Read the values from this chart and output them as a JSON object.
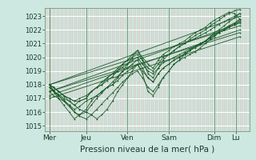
{
  "xlabel": "Pression niveau de la mer( hPa )",
  "bg_color": "#cce8e0",
  "plot_bg_color": "#cce8e0",
  "grid_color_v": "#e8b8b8",
  "grid_color_h": "#ffffff",
  "line_color": "#1a5c2a",
  "yticks": [
    1015,
    1016,
    1017,
    1018,
    1019,
    1020,
    1021,
    1022,
    1023
  ],
  "ylim": [
    1014.6,
    1023.6
  ],
  "xlim": [
    0.0,
    5.2
  ],
  "xtick_positions": [
    0.12,
    1.05,
    2.1,
    3.15,
    4.3,
    4.85
  ],
  "xtick_labels": [
    "Mer",
    "Jeu",
    "Ven",
    "Sam",
    "Dim",
    "Lu"
  ],
  "day_lines_x": [
    0.12,
    1.05,
    2.1,
    3.15,
    4.3,
    4.85
  ],
  "series": [
    {
      "x": [
        0.12,
        0.22,
        0.35,
        0.48,
        0.62,
        0.75,
        0.88,
        1.05,
        1.18,
        1.32,
        1.45,
        1.58,
        1.72,
        1.85,
        1.98,
        2.1,
        2.22,
        2.35,
        2.48,
        2.62,
        2.75,
        2.88,
        3.0,
        3.15,
        3.28,
        3.42,
        3.55,
        3.68,
        3.82,
        3.95,
        4.08,
        4.2,
        4.3,
        4.42,
        4.55,
        4.68,
        4.82,
        4.95
      ],
      "y": [
        1018.0,
        1017.6,
        1017.2,
        1016.8,
        1016.4,
        1016.0,
        1015.7,
        1015.5,
        1015.8,
        1016.2,
        1016.6,
        1017.0,
        1017.4,
        1017.8,
        1018.2,
        1018.5,
        1018.8,
        1019.0,
        1018.5,
        1017.8,
        1017.5,
        1018.0,
        1018.5,
        1019.0,
        1019.5,
        1019.8,
        1020.0,
        1020.2,
        1020.4,
        1020.7,
        1021.0,
        1021.3,
        1021.5,
        1021.8,
        1022.0,
        1022.3,
        1022.5,
        1022.7
      ]
    },
    {
      "x": [
        0.12,
        0.22,
        0.35,
        0.48,
        0.62,
        0.75,
        0.88,
        1.05,
        1.18,
        1.32,
        1.45,
        1.58,
        1.72,
        1.85,
        1.98,
        2.1,
        2.22,
        2.35,
        2.48,
        2.62,
        2.75,
        2.88,
        3.0,
        3.15,
        3.28,
        3.42,
        3.55,
        3.68,
        3.82,
        3.95,
        4.08,
        4.2,
        4.3,
        4.42,
        4.55,
        4.68,
        4.82,
        4.95
      ],
      "y": [
        1017.8,
        1017.5,
        1017.2,
        1016.9,
        1016.5,
        1016.2,
        1016.4,
        1016.8,
        1017.0,
        1017.2,
        1017.5,
        1017.8,
        1018.0,
        1018.3,
        1018.7,
        1019.0,
        1019.2,
        1019.5,
        1019.0,
        1018.5,
        1018.2,
        1018.8,
        1019.2,
        1019.5,
        1019.8,
        1020.0,
        1020.2,
        1020.5,
        1020.7,
        1020.9,
        1021.2,
        1021.5,
        1021.7,
        1021.9,
        1022.1,
        1022.3,
        1022.5,
        1022.8
      ]
    },
    {
      "x": [
        0.12,
        0.22,
        0.35,
        0.48,
        0.62,
        0.75,
        0.88,
        1.05,
        1.18,
        1.32,
        1.45,
        1.58,
        1.72,
        1.85,
        1.98,
        2.1,
        2.22,
        2.35,
        2.48,
        2.62,
        2.75,
        2.88,
        3.0,
        3.15,
        3.28,
        3.42,
        3.55,
        3.68,
        3.82,
        3.95,
        4.08,
        4.2,
        4.3,
        4.42,
        4.55,
        4.68,
        4.82,
        4.95
      ],
      "y": [
        1017.5,
        1017.2,
        1017.0,
        1016.8,
        1016.5,
        1016.0,
        1015.8,
        1016.0,
        1016.5,
        1017.0,
        1017.4,
        1017.8,
        1018.2,
        1018.6,
        1019.0,
        1019.2,
        1019.5,
        1019.8,
        1019.2,
        1018.5,
        1018.2,
        1018.8,
        1019.2,
        1019.5,
        1019.8,
        1020.0,
        1020.3,
        1020.5,
        1020.8,
        1021.0,
        1021.2,
        1021.4,
        1021.6,
        1021.8,
        1022.0,
        1022.2,
        1022.4,
        1022.6
      ]
    },
    {
      "x": [
        0.12,
        0.22,
        0.35,
        0.48,
        0.62,
        0.75,
        0.88,
        1.05,
        1.18,
        1.32,
        1.45,
        1.58,
        1.72,
        1.85,
        1.98,
        2.1,
        2.22,
        2.35,
        2.48,
        2.62,
        2.75,
        2.88,
        3.0,
        3.15,
        3.28,
        3.42,
        3.55,
        3.68,
        3.82,
        3.95,
        4.08,
        4.2,
        4.3,
        4.42,
        4.55,
        4.68,
        4.82,
        4.95
      ],
      "y": [
        1017.8,
        1017.5,
        1017.3,
        1017.0,
        1016.8,
        1016.5,
        1016.8,
        1017.0,
        1017.5,
        1017.8,
        1018.0,
        1018.3,
        1018.6,
        1019.0,
        1019.3,
        1019.5,
        1019.8,
        1020.0,
        1019.5,
        1019.0,
        1018.8,
        1019.2,
        1019.6,
        1019.8,
        1020.0,
        1020.2,
        1020.4,
        1020.6,
        1020.8,
        1021.0,
        1021.2,
        1021.4,
        1021.6,
        1021.8,
        1022.0,
        1022.2,
        1022.4,
        1022.6
      ]
    },
    {
      "x": [
        0.12,
        0.22,
        0.35,
        0.48,
        0.62,
        0.75,
        0.88,
        1.05,
        1.18,
        1.32,
        1.45,
        1.58,
        1.72,
        1.85,
        1.98,
        2.1,
        2.22,
        2.35,
        2.48,
        2.62,
        2.75,
        2.88,
        3.0,
        3.15,
        3.28,
        3.42,
        3.55,
        3.68,
        3.82,
        3.95,
        4.08,
        4.2,
        4.3,
        4.42,
        4.55,
        4.68,
        4.82,
        4.95
      ],
      "y": [
        1018.0,
        1017.8,
        1017.5,
        1017.2,
        1016.8,
        1016.5,
        1016.2,
        1016.0,
        1015.8,
        1015.5,
        1015.8,
        1016.2,
        1016.8,
        1017.5,
        1018.0,
        1018.5,
        1019.0,
        1019.5,
        1018.8,
        1017.5,
        1017.2,
        1017.8,
        1018.5,
        1019.0,
        1019.5,
        1019.8,
        1020.2,
        1020.5,
        1020.8,
        1021.0,
        1021.2,
        1021.5,
        1021.8,
        1022.0,
        1022.3,
        1022.6,
        1022.9,
        1023.2
      ]
    },
    {
      "x": [
        0.12,
        0.22,
        0.35,
        0.48,
        0.62,
        0.75,
        0.88,
        1.05,
        1.18,
        1.32,
        1.45,
        1.58,
        1.72,
        1.85,
        1.98,
        2.1,
        2.22,
        2.35,
        2.48,
        2.62,
        2.75,
        2.88,
        3.0,
        3.15,
        3.28,
        3.42,
        3.55,
        3.68,
        3.82,
        3.95,
        4.08,
        4.2,
        4.3,
        4.42,
        4.55,
        4.68,
        4.82,
        4.95
      ],
      "y": [
        1018.0,
        1017.8,
        1017.5,
        1017.2,
        1017.0,
        1016.8,
        1017.0,
        1017.2,
        1017.5,
        1017.8,
        1018.0,
        1018.5,
        1018.8,
        1019.2,
        1019.5,
        1019.8,
        1020.0,
        1020.2,
        1019.8,
        1019.2,
        1019.0,
        1019.5,
        1020.0,
        1020.2,
        1020.5,
        1020.8,
        1021.0,
        1021.2,
        1021.4,
        1021.6,
        1021.8,
        1022.0,
        1022.2,
        1022.4,
        1022.6,
        1022.8,
        1023.0,
        1023.2
      ]
    },
    {
      "x": [
        0.12,
        0.22,
        0.35,
        0.48,
        0.62,
        0.75,
        0.88,
        1.05,
        1.18,
        1.32,
        1.45,
        1.58,
        1.72,
        1.85,
        1.98,
        2.1,
        2.22,
        2.35,
        2.48,
        2.62,
        2.75,
        2.88,
        3.0,
        3.15,
        3.28,
        3.42,
        3.55,
        3.68,
        3.82,
        3.95,
        4.08,
        4.2,
        4.3,
        4.42,
        4.55,
        4.68,
        4.82,
        4.95
      ],
      "y": [
        1018.0,
        1017.5,
        1017.0,
        1016.5,
        1016.0,
        1015.5,
        1015.8,
        1016.2,
        1016.8,
        1017.2,
        1017.5,
        1017.8,
        1018.0,
        1018.5,
        1019.0,
        1019.5,
        1020.0,
        1020.5,
        1019.8,
        1018.8,
        1018.5,
        1019.2,
        1019.8,
        1020.2,
        1020.5,
        1020.8,
        1021.0,
        1021.3,
        1021.6,
        1021.8,
        1022.0,
        1022.3,
        1022.5,
        1022.7,
        1023.0,
        1023.2,
        1023.4,
        1023.5
      ]
    },
    {
      "x": [
        0.12,
        0.22,
        0.35,
        0.48,
        0.62,
        0.75,
        0.88,
        1.05,
        1.18,
        1.32,
        1.45,
        1.58,
        1.72,
        1.85,
        1.98,
        2.1,
        2.22,
        2.35,
        2.48,
        2.62,
        2.75,
        2.88,
        3.0,
        3.15,
        3.28,
        3.42,
        3.55,
        3.68,
        3.82,
        3.95,
        4.08,
        4.2,
        4.3,
        4.42,
        4.55,
        4.68,
        4.82,
        4.95
      ],
      "y": [
        1018.0,
        1017.8,
        1017.5,
        1017.2,
        1017.0,
        1016.8,
        1016.8,
        1017.0,
        1017.5,
        1017.8,
        1018.2,
        1018.5,
        1018.8,
        1019.0,
        1019.5,
        1019.8,
        1020.2,
        1020.5,
        1020.0,
        1019.5,
        1019.2,
        1019.8,
        1020.2,
        1020.5,
        1020.8,
        1021.0,
        1021.2,
        1021.5,
        1021.8,
        1022.0,
        1022.2,
        1022.5,
        1022.7,
        1022.9,
        1023.1,
        1023.3,
        1023.2,
        1022.8
      ]
    },
    {
      "x": [
        0.12,
        4.95
      ],
      "y": [
        1017.5,
        1022.5
      ]
    },
    {
      "x": [
        0.12,
        4.95
      ],
      "y": [
        1018.0,
        1023.0
      ]
    },
    {
      "x": [
        0.12,
        4.95
      ],
      "y": [
        1017.2,
        1022.0
      ]
    },
    {
      "x": [
        0.12,
        4.95
      ],
      "y": [
        1017.0,
        1021.5
      ]
    },
    {
      "x": [
        0.12,
        4.95
      ],
      "y": [
        1017.5,
        1021.8
      ]
    },
    {
      "x": [
        0.12,
        4.95
      ],
      "y": [
        1018.0,
        1022.3
      ]
    }
  ]
}
